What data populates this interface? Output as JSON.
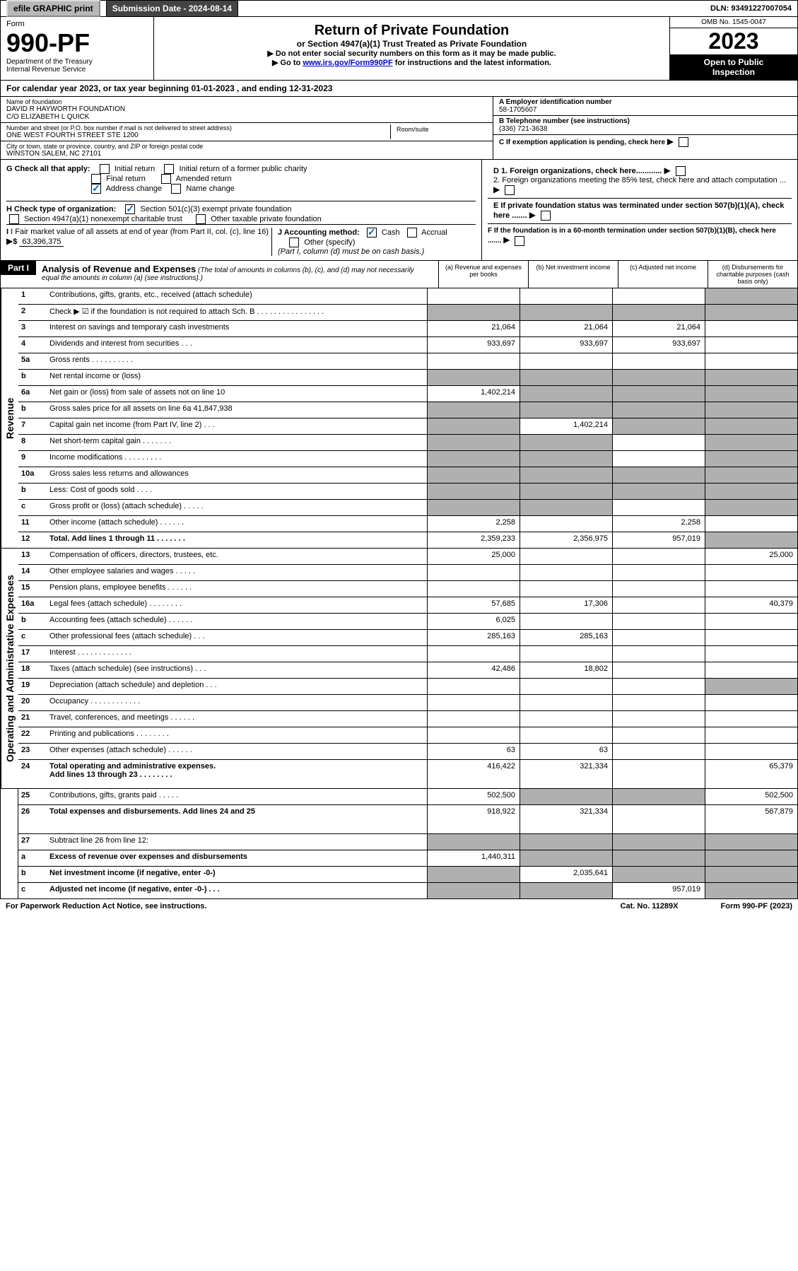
{
  "header": {
    "efile": "efile GRAPHIC print",
    "submission": "Submission Date - 2024-08-14",
    "dln": "DLN: 93491227007054"
  },
  "form": {
    "label": "Form",
    "number": "990-PF",
    "dept": "Department of the Treasury\nInternal Revenue Service",
    "title": "Return of Private Foundation",
    "subtitle": "or Section 4947(a)(1) Trust Treated as Private Foundation",
    "instr1": "▶ Do not enter social security numbers on this form as it may be made public.",
    "instr2_pre": "▶ Go to ",
    "instr2_link": "www.irs.gov/Form990PF",
    "instr2_post": " for instructions and the latest information.",
    "omb": "OMB No. 1545-0047",
    "year": "2023",
    "open": "Open to Public\nInspection"
  },
  "calyear": "For calendar year 2023, or tax year beginning 01-01-2023                        , and ending 12-31-2023",
  "info": {
    "name_label": "Name of foundation",
    "name": "DAVID R HAYWORTH FOUNDATION\nC/O ELIZABETH L QUICK",
    "addr_label": "Number and street (or P.O. box number if mail is not delivered to street address)",
    "addr": "ONE WEST FOURTH STREET STE 1200",
    "room_label": "Room/suite",
    "city_label": "City or town, state or province, country, and ZIP or foreign postal code",
    "city": "WINSTON SALEM, NC  27101",
    "a_label": "A Employer identification number",
    "a_val": "58-1705607",
    "b_label": "B Telephone number (see instructions)",
    "b_val": "(336) 721-3638",
    "c_label": "C If exemption application is pending, check here",
    "d1": "D 1. Foreign organizations, check here............",
    "d2": "2. Foreign organizations meeting the 85% test, check here and attach computation ...",
    "e": "E  If private foundation status was terminated under section 507(b)(1)(A), check here .......",
    "f": "F  If the foundation is in a 60-month termination under section 507(b)(1)(B), check here .......",
    "g_label": "G Check all that apply:",
    "g_opts": [
      "Initial return",
      "Initial return of a former public charity",
      "Final return",
      "Amended return",
      "Address change",
      "Name change"
    ],
    "h_label": "H Check type of organization:",
    "h_opts": [
      "Section 501(c)(3) exempt private foundation",
      "Section 4947(a)(1) nonexempt charitable trust",
      "Other taxable private foundation"
    ],
    "i_label": "I Fair market value of all assets at end of year (from Part II, col. (c), line 16)",
    "i_val": "63,396,375",
    "j_label": "J Accounting method:",
    "j_opts": [
      "Cash",
      "Accrual",
      "Other (specify)"
    ],
    "j_note": "(Part I, column (d) must be on cash basis.)"
  },
  "part1": {
    "label": "Part I",
    "title": "Analysis of Revenue and Expenses",
    "title_note": "(The total of amounts in columns (b), (c), and (d) may not necessarily equal the amounts in column (a) (see instructions).)",
    "cols": [
      "(a)  Revenue and expenses per books",
      "(b)  Net investment income",
      "(c)  Adjusted net income",
      "(d)  Disbursements for charitable purposes (cash basis only)"
    ]
  },
  "sections": {
    "revenue": "Revenue",
    "expenses": "Operating and Administrative Expenses"
  },
  "rows": [
    {
      "n": "1",
      "d": "Contributions, gifts, grants, etc., received (attach schedule)",
      "a": "",
      "b": "",
      "c": "",
      "dd": "",
      "sb": "d"
    },
    {
      "n": "2",
      "d": "Check ▶ ☑ if the foundation is not required to attach Sch. B   .  .  .  .  .  .  .  .  .  .  .  .  .  .  .  .",
      "a": "",
      "b": "",
      "c": "",
      "dd": "",
      "sa": "abcd"
    },
    {
      "n": "3",
      "d": "Interest on savings and temporary cash investments",
      "a": "21,064",
      "b": "21,064",
      "c": "21,064",
      "dd": ""
    },
    {
      "n": "4",
      "d": "Dividends and interest from securities    .   .   .",
      "a": "933,697",
      "b": "933,697",
      "c": "933,697",
      "dd": ""
    },
    {
      "n": "5a",
      "d": "Gross rents     .    .    .    .    .    .    .    .    .    .",
      "a": "",
      "b": "",
      "c": "",
      "dd": ""
    },
    {
      "n": "b",
      "d": "Net rental income or (loss)",
      "a": "",
      "b": "",
      "c": "",
      "dd": "",
      "sa": "abcd",
      "boxed": true
    },
    {
      "n": "6a",
      "d": "Net gain or (loss) from sale of assets not on line 10",
      "a": "1,402,214",
      "b": "",
      "c": "",
      "dd": "",
      "sb": "bcd"
    },
    {
      "n": "b",
      "d": "Gross sales price for all assets on line 6a           41,847,938",
      "a": "",
      "b": "",
      "c": "",
      "dd": "",
      "sa": "abcd"
    },
    {
      "n": "7",
      "d": "Capital gain net income (from Part IV, line 2)    .   .   .",
      "a": "",
      "b": "1,402,214",
      "c": "",
      "dd": "",
      "sa": "a",
      "sb": "cd"
    },
    {
      "n": "8",
      "d": "Net short-term capital gain   .   .   .   .   .   .   .",
      "a": "",
      "b": "",
      "c": "",
      "dd": "",
      "sa": "ab",
      "sb": "d"
    },
    {
      "n": "9",
      "d": "Income modifications  .   .   .   .   .   .   .   .   .",
      "a": "",
      "b": "",
      "c": "",
      "dd": "",
      "sa": "ab",
      "sb": "d"
    },
    {
      "n": "10a",
      "d": "Gross sales less returns and allowances",
      "a": "",
      "b": "",
      "c": "",
      "dd": "",
      "sa": "abcd",
      "boxed": true
    },
    {
      "n": "b",
      "d": "Less: Cost of goods sold     .    .    .    .",
      "a": "",
      "b": "",
      "c": "",
      "dd": "",
      "sa": "abcd",
      "boxed": true
    },
    {
      "n": "c",
      "d": "Gross profit or (loss) (attach schedule)     .   .   .   .   .",
      "a": "",
      "b": "",
      "c": "",
      "dd": "",
      "sa": "ab",
      "sb": "d"
    },
    {
      "n": "11",
      "d": "Other income (attach schedule)    .   .   .   .   .   .",
      "a": "2,258",
      "b": "",
      "c": "2,258",
      "dd": ""
    },
    {
      "n": "12",
      "d": "Total. Add lines 1 through 11   .   .   .   .   .   .   .",
      "a": "2,359,233",
      "b": "2,356,975",
      "c": "957,019",
      "dd": "",
      "bold": true,
      "sb": "d"
    },
    {
      "n": "13",
      "d": "Compensation of officers, directors, trustees, etc.",
      "a": "25,000",
      "b": "",
      "c": "",
      "dd": "25,000"
    },
    {
      "n": "14",
      "d": "Other employee salaries and wages    .   .   .   .   .",
      "a": "",
      "b": "",
      "c": "",
      "dd": ""
    },
    {
      "n": "15",
      "d": "Pension plans, employee benefits  .   .   .   .   .   .",
      "a": "",
      "b": "",
      "c": "",
      "dd": ""
    },
    {
      "n": "16a",
      "d": "Legal fees (attach schedule) .   .   .   .   .   .   .   .",
      "a": "57,685",
      "b": "17,306",
      "c": "",
      "dd": "40,379"
    },
    {
      "n": "b",
      "d": "Accounting fees (attach schedule) .   .   .   .   .   .",
      "a": "6,025",
      "b": "",
      "c": "",
      "dd": ""
    },
    {
      "n": "c",
      "d": "Other professional fees (attach schedule)    .   .   .",
      "a": "285,163",
      "b": "285,163",
      "c": "",
      "dd": ""
    },
    {
      "n": "17",
      "d": "Interest .   .   .   .   .   .   .   .   .   .   .   .   .",
      "a": "",
      "b": "",
      "c": "",
      "dd": ""
    },
    {
      "n": "18",
      "d": "Taxes (attach schedule) (see instructions)     .   .   .",
      "a": "42,486",
      "b": "18,802",
      "c": "",
      "dd": ""
    },
    {
      "n": "19",
      "d": "Depreciation (attach schedule) and depletion    .   .   .",
      "a": "",
      "b": "",
      "c": "",
      "dd": "",
      "sb": "d"
    },
    {
      "n": "20",
      "d": "Occupancy .   .   .   .   .   .   .   .   .   .   .   .",
      "a": "",
      "b": "",
      "c": "",
      "dd": ""
    },
    {
      "n": "21",
      "d": "Travel, conferences, and meetings .   .   .   .   .   .",
      "a": "",
      "b": "",
      "c": "",
      "dd": ""
    },
    {
      "n": "22",
      "d": "Printing and publications .   .   .   .   .   .   .   .",
      "a": "",
      "b": "",
      "c": "",
      "dd": ""
    },
    {
      "n": "23",
      "d": "Other expenses (attach schedule) .   .   .   .   .   .",
      "a": "63",
      "b": "63",
      "c": "",
      "dd": ""
    },
    {
      "n": "24",
      "d": "Total operating and administrative expenses.\nAdd lines 13 through 23   .   .   .   .   .   .   .   .",
      "a": "416,422",
      "b": "321,334",
      "c": "",
      "dd": "65,379",
      "bold": true,
      "tall": true
    },
    {
      "n": "25",
      "d": "Contributions, gifts, grants paid     .   .   .   .   .",
      "a": "502,500",
      "b": "",
      "c": "",
      "dd": "502,500",
      "sb": "bc"
    },
    {
      "n": "26",
      "d": "Total expenses and disbursements. Add lines 24 and 25",
      "a": "918,922",
      "b": "321,334",
      "c": "",
      "dd": "567,879",
      "bold": true,
      "tall": true
    },
    {
      "n": "27",
      "d": "Subtract line 26 from line 12:",
      "a": "",
      "b": "",
      "c": "",
      "dd": "",
      "sa": "abcd"
    },
    {
      "n": "a",
      "d": "Excess of revenue over expenses and disbursements",
      "a": "1,440,311",
      "b": "",
      "c": "",
      "dd": "",
      "bold": true,
      "sb": "bcd"
    },
    {
      "n": "b",
      "d": "Net investment income (if negative, enter -0-)",
      "a": "",
      "b": "2,035,641",
      "c": "",
      "dd": "",
      "bold": true,
      "sa": "a",
      "sb": "cd"
    },
    {
      "n": "c",
      "d": "Adjusted net income (if negative, enter -0-)    .   .   .",
      "a": "",
      "b": "",
      "c": "957,019",
      "dd": "",
      "bold": true,
      "sa": "ab",
      "sb": "d"
    }
  ],
  "footer": {
    "left": "For Paperwork Reduction Act Notice, see instructions.",
    "mid": "Cat. No. 11289X",
    "right": "Form 990-PF (2023)"
  }
}
